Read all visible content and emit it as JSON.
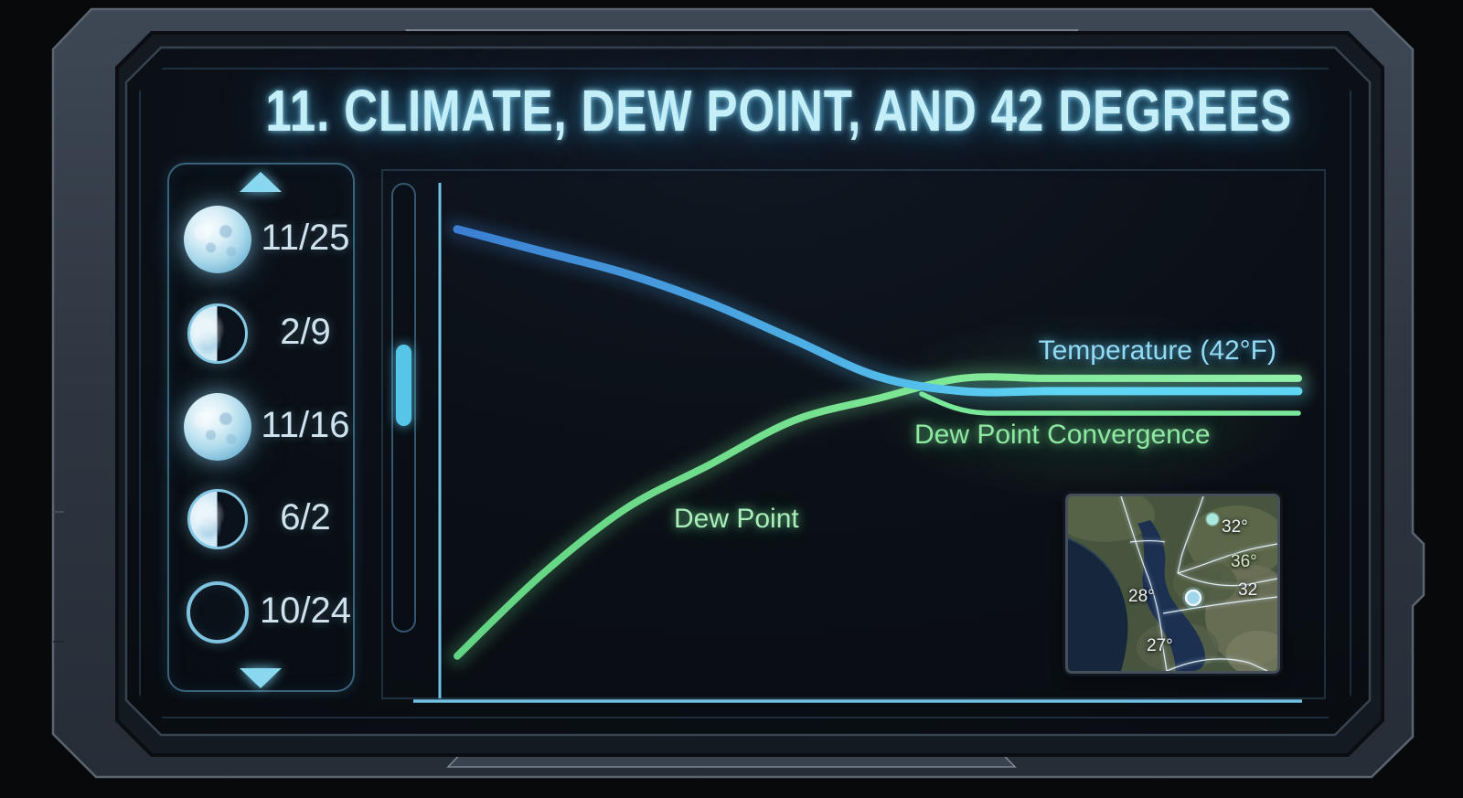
{
  "title": "11. CLIMATE, DEW POINT, AND 42 DEGREES",
  "sidebar": {
    "items": [
      {
        "phase": "full-moon",
        "date": "11/25"
      },
      {
        "phase": "half-moon",
        "date": "2/9"
      },
      {
        "phase": "full-moon",
        "date": "11/16"
      },
      {
        "phase": "half-moon",
        "date": "6/2"
      },
      {
        "phase": "new-moon",
        "date": "10/24"
      }
    ]
  },
  "chart_data": {
    "type": "line",
    "x": [
      0,
      1,
      2,
      3,
      4,
      5,
      6,
      7,
      8,
      9,
      10
    ],
    "series": [
      {
        "name": "Temperature",
        "label": "Temperature (42°F)",
        "color": "#5ccdf0",
        "values": [
          64,
          61,
          58,
          54,
          49,
          44,
          42,
          42,
          42,
          42,
          42
        ]
      },
      {
        "name": "Dew Point",
        "label": "Dew Point",
        "color": "#7fe896",
        "values": [
          6,
          17,
          26,
          32,
          38,
          41,
          42,
          42,
          42,
          42,
          42
        ]
      }
    ],
    "annotations": [
      {
        "text": "Dew Point Convergence"
      }
    ],
    "converged_temperature_f": 42,
    "xlabel": "",
    "ylabel": "",
    "ylim": [
      0,
      78
    ],
    "grid": false,
    "legend_position": "inline-right"
  },
  "map": {
    "region": "San Francisco Bay Area",
    "readings": [
      {
        "text": "32°"
      },
      {
        "text": "36°"
      },
      {
        "text": "32"
      },
      {
        "text": "28°"
      },
      {
        "text": "27°"
      }
    ]
  },
  "colors": {
    "accent_cyan": "#5ccdf0",
    "accent_green": "#7fe896",
    "title_glow": "#8cd8f4",
    "bezel": "#343d49",
    "screen_bg": "#0a0f15"
  }
}
